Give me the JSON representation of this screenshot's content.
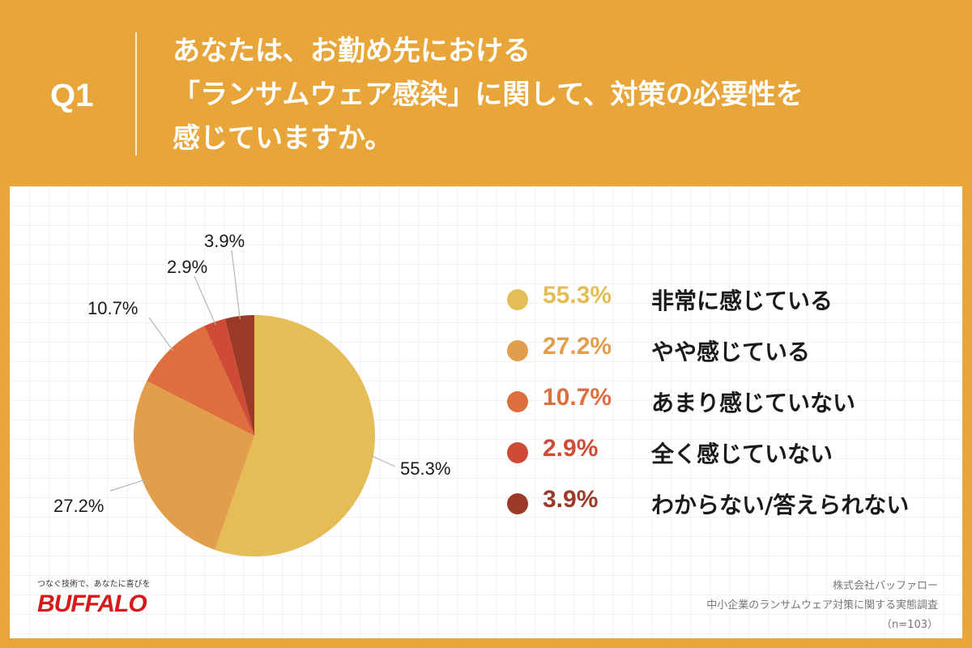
{
  "question": {
    "label": "Q1",
    "lines": [
      "あなたは、お勤め先における",
      "「ランサムウェア感染」に関して、対策の必要性を",
      "感じていますか。"
    ]
  },
  "chart_data": {
    "type": "pie",
    "categories": [
      "非常に感じている",
      "やや感じている",
      "あまり感じていない",
      "全く感じていない",
      "わからない/答えられない"
    ],
    "values": [
      55.3,
      27.2,
      10.7,
      2.9,
      3.9
    ],
    "value_labels": [
      "55.3%",
      "27.2%",
      "10.7%",
      "2.9%",
      "3.9%"
    ],
    "colors": [
      "#E5BD57",
      "#E39E4B",
      "#DE6E3D",
      "#D04B35",
      "#9B3A27"
    ],
    "start": "12 o'clock",
    "direction": "clockwise",
    "legend_position": "right"
  },
  "legend": [
    {
      "pct": "55.3%",
      "label": "非常に感じている",
      "color": "#E5BD57"
    },
    {
      "pct": "27.2%",
      "label": "やや感じている",
      "color": "#E39E4B"
    },
    {
      "pct": "10.7%",
      "label": "あまり感じていない",
      "color": "#DE6E3D"
    },
    {
      "pct": "2.9%",
      "label": "全く感じていない",
      "color": "#D04B35"
    },
    {
      "pct": "3.9%",
      "label": "わからない/答えられない",
      "color": "#9B3A27"
    }
  ],
  "logo": {
    "tagline": "つなぐ技術で、あなたに喜びを",
    "brand": "BUFFALO"
  },
  "source": {
    "company": "株式会社バッファロー",
    "survey": "中小企業のランサムウェア対策に関する実態調査",
    "sample": "（n=103）"
  },
  "colors": {
    "background": "#E8A63A",
    "panel": "#FFFFFF",
    "brand": "#D61A1A"
  }
}
